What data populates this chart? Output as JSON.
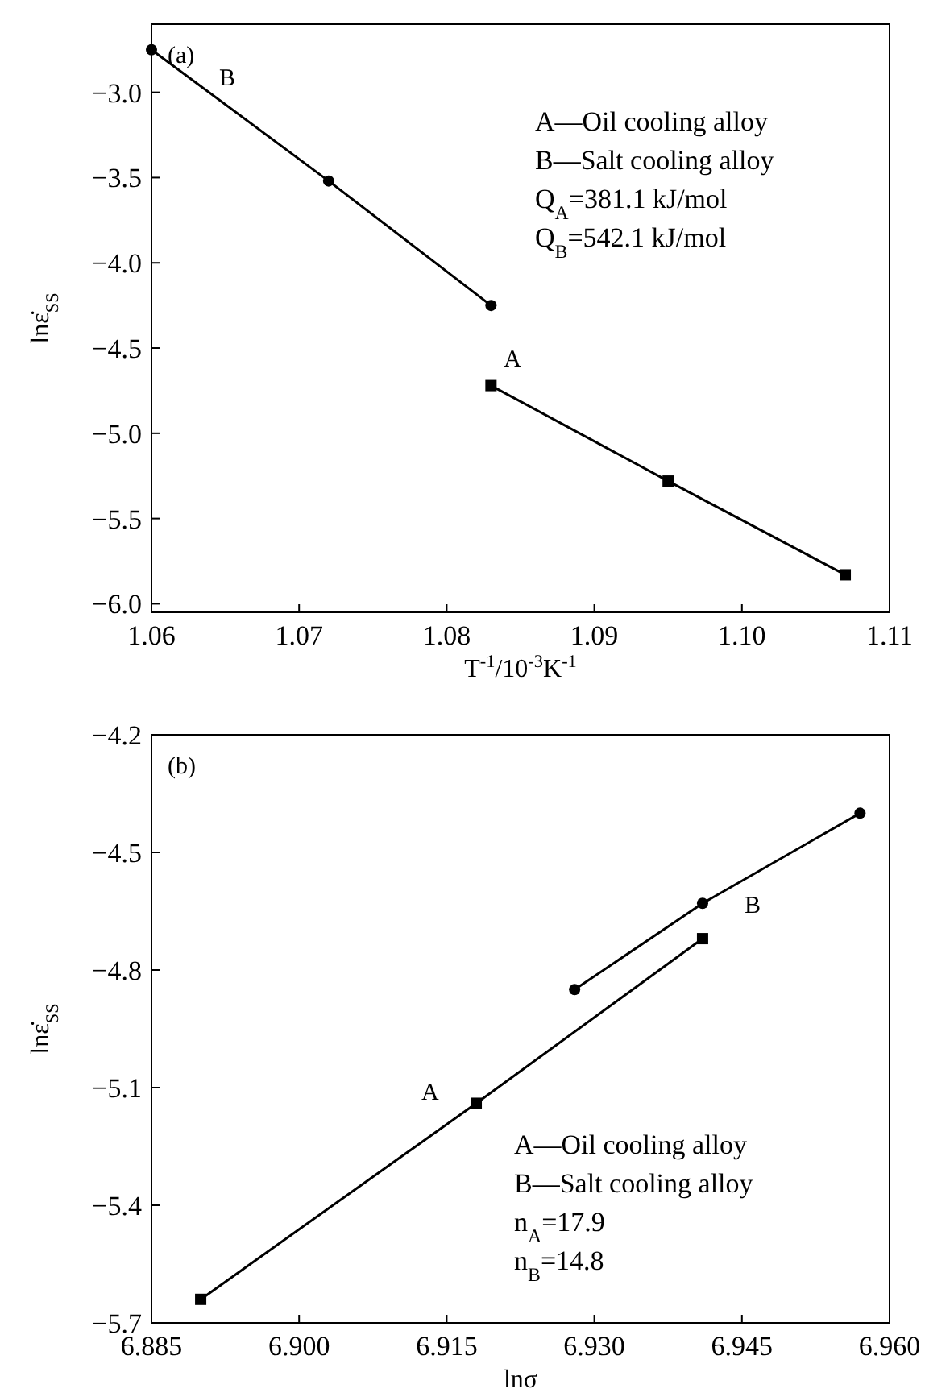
{
  "chart_data": [
    {
      "type": "line",
      "xlabel": "T$^{-1}$/10$^{-3}$K$^{-1}$",
      "ylabel": "lnε̇$_{SS}$",
      "xlim": [
        1.06,
        1.11
      ],
      "ylim": [
        -6.05,
        -2.6
      ],
      "xticks": [
        {
          "value": 1.06,
          "label": "1.06"
        },
        {
          "value": 1.07,
          "label": "1.07"
        },
        {
          "value": 1.08,
          "label": "1.08"
        },
        {
          "value": 1.09,
          "label": "1.09"
        },
        {
          "value": 1.1,
          "label": "1.10"
        },
        {
          "value": 1.11,
          "label": "1.11"
        }
      ],
      "yticks": [
        {
          "value": -3,
          "label": "−3.0"
        },
        {
          "value": -3.5,
          "label": "−3.5"
        },
        {
          "value": -4,
          "label": "−4.0"
        },
        {
          "value": -4.5,
          "label": "−4.5"
        },
        {
          "value": -5,
          "label": "−5.0"
        },
        {
          "value": -5.5,
          "label": "−5.5"
        },
        {
          "value": -6,
          "label": "−6.0"
        }
      ],
      "series": [
        {
          "name": "B",
          "color": "#000000",
          "marker": "circle",
          "x": [
            1.06,
            1.072,
            1.083
          ],
          "values": [
            -2.75,
            -3.52,
            -4.25
          ]
        },
        {
          "name": "A",
          "color": "#000000",
          "marker": "square",
          "x": [
            1.083,
            1.095,
            1.107
          ],
          "values": [
            -4.72,
            -5.28,
            -5.83
          ]
        }
      ],
      "annotations": [
        "(a)",
        "A—Oil cooling alloy",
        "B—Salt cooling alloy",
        "Q$_{A}$=381.1 kJ/mol",
        "Q$_{B}$=542.1 kJ/mol"
      ],
      "grid": false,
      "line_style": "solid"
    },
    {
      "type": "line",
      "xlabel": "lnσ",
      "ylabel": "lnε̇$_{SS}$",
      "xlim": [
        6.885,
        6.96
      ],
      "ylim": [
        -5.7,
        -4.2
      ],
      "xticks": [
        {
          "value": 6.885,
          "label": "6.885"
        },
        {
          "value": 6.9,
          "label": "6.900"
        },
        {
          "value": 6.915,
          "label": "6.915"
        },
        {
          "value": 6.93,
          "label": "6.930"
        },
        {
          "value": 6.945,
          "label": "6.945"
        },
        {
          "value": 6.96,
          "label": "6.960"
        }
      ],
      "yticks": [
        {
          "value": -4.2,
          "label": "−4.2"
        },
        {
          "value": -4.5,
          "label": "−4.5"
        },
        {
          "value": -4.8,
          "label": "−4.8"
        },
        {
          "value": -5.1,
          "label": "−5.1"
        },
        {
          "value": -5.4,
          "label": "−5.4"
        },
        {
          "value": -5.7,
          "label": "−5.7"
        }
      ],
      "series": [
        {
          "name": "B",
          "color": "#000000",
          "marker": "circle",
          "x": [
            6.928,
            6.941,
            6.957
          ],
          "values": [
            -4.85,
            -4.63,
            -4.4
          ]
        },
        {
          "name": "A",
          "color": "#000000",
          "marker": "square",
          "x": [
            6.89,
            6.918,
            6.941
          ],
          "values": [
            -5.64,
            -5.14,
            -4.72
          ]
        }
      ],
      "annotations": [
        "(b)",
        "A—Oil cooling alloy",
        "B—Salt cooling alloy",
        "n$_{A}$=17.9",
        "n$_{B}$=14.8"
      ],
      "grid": false,
      "line_style": "solid"
    }
  ]
}
